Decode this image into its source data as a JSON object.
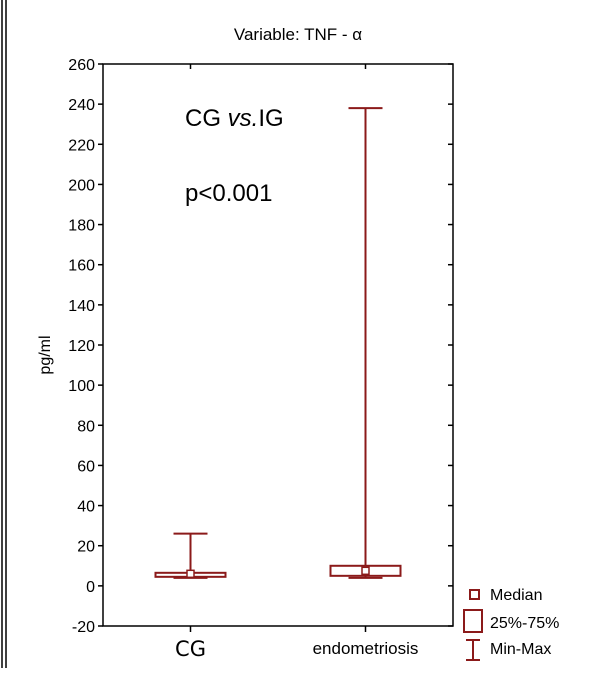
{
  "chart_data": {
    "type": "box",
    "title": "Variable:  TNF - α",
    "xlabel": "",
    "ylabel": "pg/ml",
    "ylim": [
      -20,
      260
    ],
    "yticks": [
      -20,
      0,
      20,
      40,
      60,
      80,
      100,
      120,
      140,
      160,
      180,
      200,
      220,
      240,
      260
    ],
    "categories": [
      "CG",
      "endometriosis"
    ],
    "boxes": [
      {
        "category": "CG",
        "min": 4,
        "q1": 4.5,
        "median": 6,
        "q3": 6.5,
        "max": 26
      },
      {
        "category": "endometriosis",
        "min": 4,
        "q1": 5,
        "median": 7.5,
        "q3": 10,
        "max": 238
      }
    ],
    "annotations": {
      "comparison_prefix": "CG ",
      "comparison_italic": "vs.",
      "comparison_suffix": "IG",
      "pvalue": "p<0.001"
    },
    "legend": {
      "position": "bottom-right",
      "items": [
        {
          "symbol": "median",
          "label": "Median"
        },
        {
          "symbol": "box",
          "label": "25%-75%"
        },
        {
          "symbol": "whisker",
          "label": "Min-Max"
        }
      ]
    },
    "grid": false,
    "colors": {
      "box": "#8b1a1a",
      "axis": "#000000"
    }
  }
}
